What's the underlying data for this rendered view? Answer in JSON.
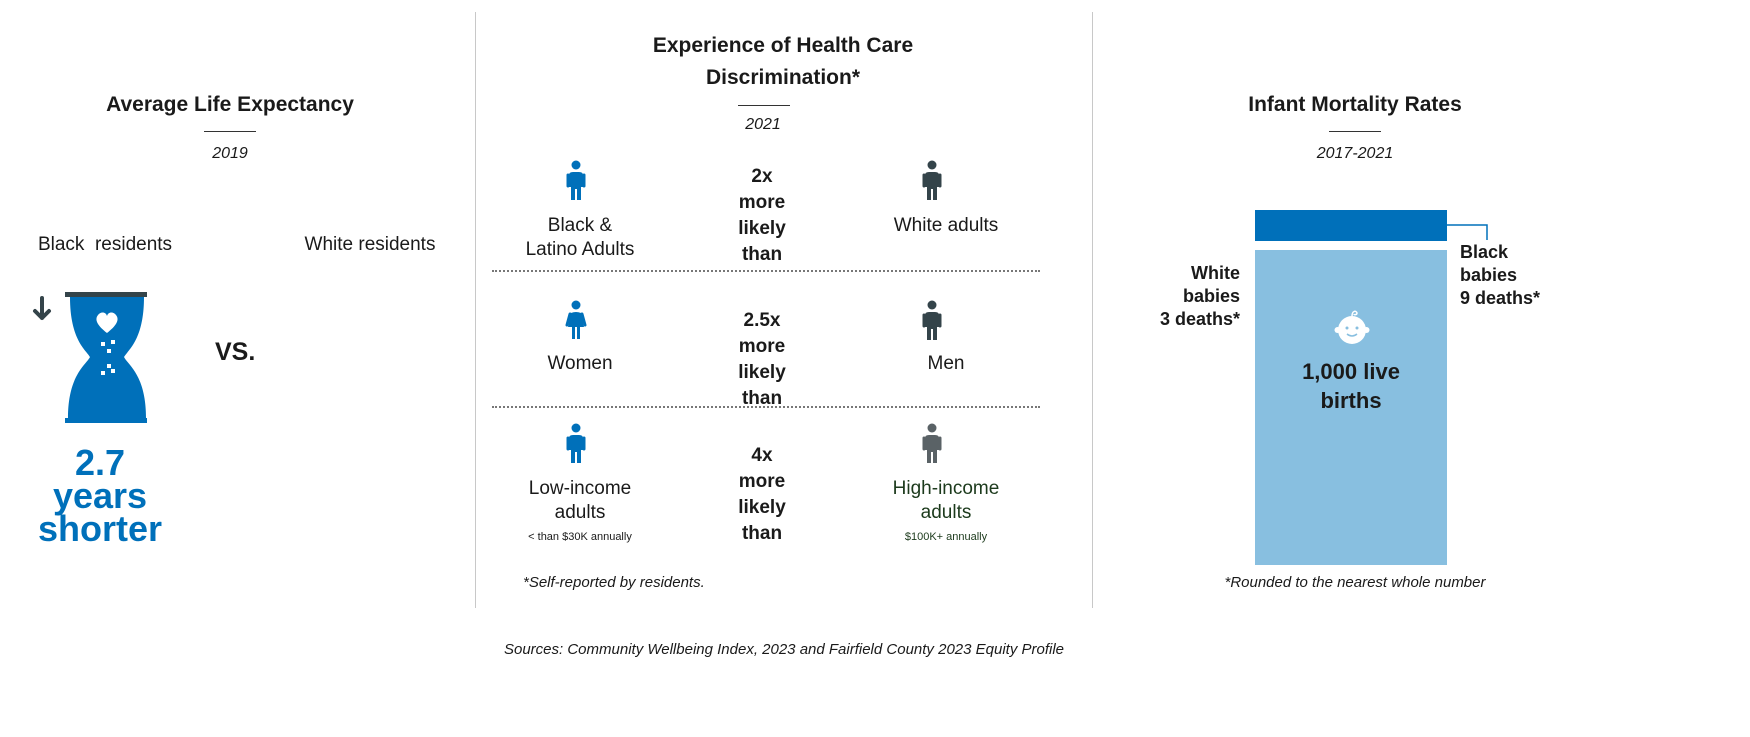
{
  "colors": {
    "accent": "#0070ba",
    "light_blue": "#88bfe0",
    "dark": "#34444a",
    "grey": "#5a6266",
    "green_text": "#1c3a1c"
  },
  "life_expectancy": {
    "title": "Average Life Expectancy",
    "year": "2019",
    "left_label": "Black  residents",
    "right_label": "White residents",
    "vs": "VS.",
    "icon": "hourglass-heart-icon",
    "result_lines": [
      "2.7",
      "years",
      "shorter"
    ]
  },
  "discrimination": {
    "title_lines": [
      "Experience of Health Care",
      "Discrimination*"
    ],
    "year": "2021",
    "rows": [
      {
        "left_icon": "person-icon",
        "left_label": [
          "Black &",
          "Latino Adults"
        ],
        "left_sub": "",
        "multiplier": "2x",
        "comparison": [
          "more",
          "likely",
          "than"
        ],
        "right_icon": "person-icon",
        "right_label": [
          "White adults"
        ],
        "right_sub": ""
      },
      {
        "left_icon": "woman-icon",
        "left_label": [
          "Women"
        ],
        "left_sub": "",
        "multiplier": "2.5x",
        "comparison": [
          "more",
          "likely",
          "than"
        ],
        "right_icon": "man-icon",
        "right_label": [
          "Men"
        ],
        "right_sub": ""
      },
      {
        "left_icon": "person-icon",
        "left_label": [
          "Low-income",
          "adults"
        ],
        "left_sub": "< than $30K annually",
        "multiplier": "4x",
        "comparison": [
          "more",
          "likely",
          "than"
        ],
        "right_icon": "person-icon",
        "right_label": [
          "High-income",
          "adults"
        ],
        "right_sub": "$100K+ annually"
      }
    ],
    "footnote": "*Self-reported by residents."
  },
  "infant_mortality": {
    "title": "Infant Mortality Rates",
    "year": "2017-2021",
    "white_label": [
      "White",
      "babies",
      "3 deaths*"
    ],
    "black_label": [
      "Black",
      "babies",
      "9 deaths*"
    ],
    "box_label": [
      "1,000 live",
      "births"
    ],
    "icon": "baby-face-icon",
    "footnote": "*Rounded to the nearest whole number"
  },
  "sources": "Sources: Community Wellbeing Index, 2023 and Fairfield County 2023 Equity Profile"
}
